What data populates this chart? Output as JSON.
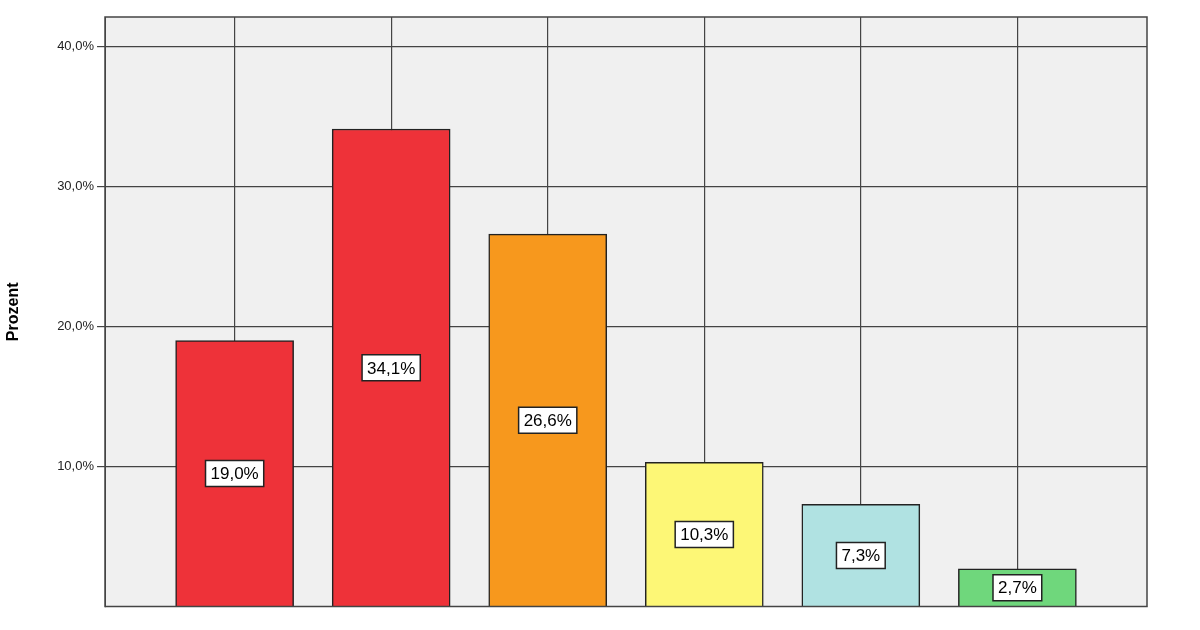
{
  "chart_data": {
    "type": "bar",
    "ylabel": "Prozent",
    "categories": [
      null,
      null,
      null,
      null,
      null,
      null
    ],
    "values": [
      19.0,
      34.1,
      26.6,
      10.3,
      7.3,
      2.7
    ],
    "colors": [
      "#ee3239",
      "#ee3239",
      "#f7981d",
      "#fdf776",
      "#b0e2e2",
      "#6fd77c"
    ],
    "value_labels": [
      "19,0%",
      "34,1%",
      "26,6%",
      "10,3%",
      "7,3%",
      "2,7%"
    ],
    "ylim": [
      0,
      42.1
    ],
    "yticks": [
      {
        "value": 10,
        "label": "10,0%"
      },
      {
        "value": 20,
        "label": "20,0%"
      },
      {
        "value": 30,
        "label": "30,0%"
      },
      {
        "value": 40,
        "label": "40,0%"
      }
    ],
    "grid": true
  }
}
